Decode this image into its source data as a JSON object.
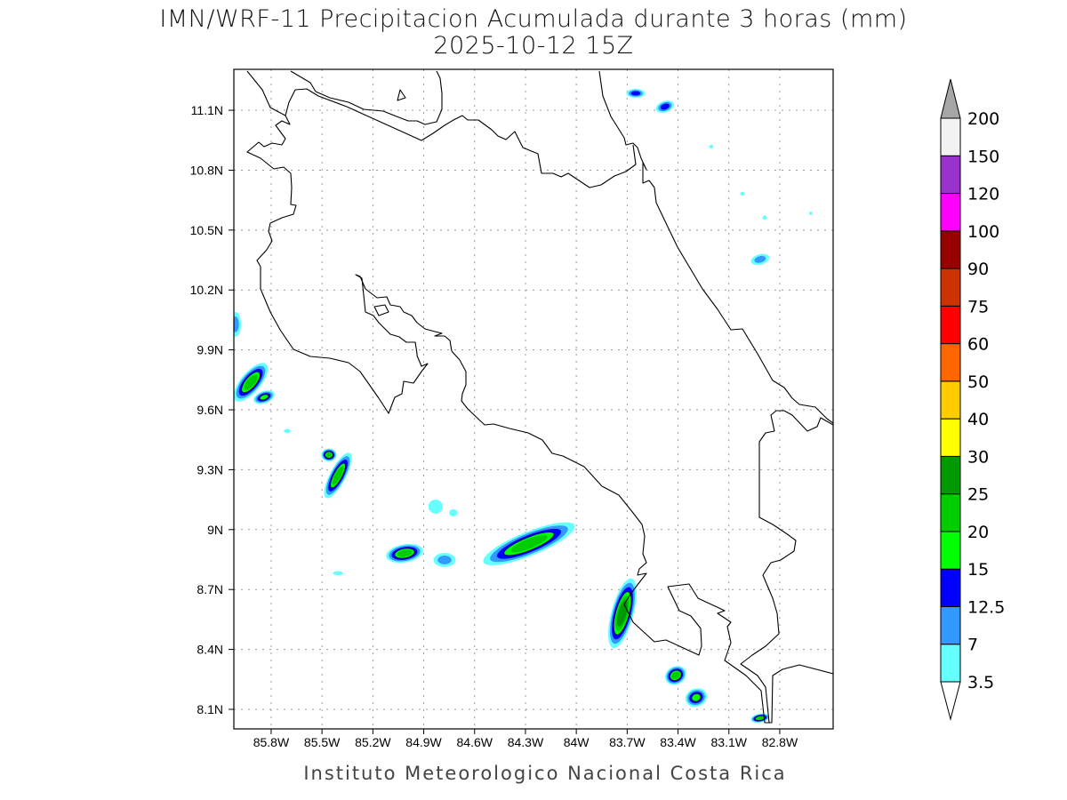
{
  "title": {
    "line1": "IMN/WRF-11 Precipitacion Acumulada durante 3 horas (mm)",
    "line2": "2025-10-12 15Z"
  },
  "footer": "Instituto Meteorologico Nacional Costa Rica",
  "map": {
    "lon_range": [
      -86.02,
      -82.485
    ],
    "lat_range": [
      8.002,
      11.305
    ],
    "lon_ticks": [
      {
        "value": -85.8,
        "label": "85.8W"
      },
      {
        "value": -85.5,
        "label": "85.5W"
      },
      {
        "value": -85.2,
        "label": "85.2W"
      },
      {
        "value": -84.9,
        "label": "84.9W"
      },
      {
        "value": -84.6,
        "label": "84.6W"
      },
      {
        "value": -84.3,
        "label": "84.3W"
      },
      {
        "value": -84.0,
        "label": "84W"
      },
      {
        "value": -83.7,
        "label": "83.7W"
      },
      {
        "value": -83.4,
        "label": "83.4W"
      },
      {
        "value": -83.1,
        "label": "83.1W"
      },
      {
        "value": -82.8,
        "label": "82.8W"
      }
    ],
    "lat_ticks": [
      {
        "value": 8.1,
        "label": "8.1N"
      },
      {
        "value": 8.4,
        "label": "8.4N"
      },
      {
        "value": 8.7,
        "label": "8.7N"
      },
      {
        "value": 9.0,
        "label": "9N"
      },
      {
        "value": 9.3,
        "label": "9.3N"
      },
      {
        "value": 9.6,
        "label": "9.6N"
      },
      {
        "value": 9.9,
        "label": "9.9N"
      },
      {
        "value": 10.2,
        "label": "10.2N"
      },
      {
        "value": 10.5,
        "label": "10.5N"
      },
      {
        "value": 10.8,
        "label": "10.8N"
      },
      {
        "value": 11.1,
        "label": "11.1N"
      }
    ],
    "precip_cells": [
      {
        "lon": -83.65,
        "lat": 11.185,
        "rx": 0.055,
        "ry": 0.022,
        "rot": 0,
        "max_level": 2
      },
      {
        "lon": -83.477,
        "lat": 11.118,
        "rx": 0.055,
        "ry": 0.028,
        "rot": 20,
        "max_level": 2
      },
      {
        "lon": -82.916,
        "lat": 10.353,
        "rx": 0.055,
        "ry": 0.026,
        "rot": 15,
        "max_level": 1
      },
      {
        "lon": -85.92,
        "lat": 9.738,
        "rx": 0.14,
        "ry": 0.05,
        "rot": 50,
        "max_level": 4
      },
      {
        "lon": -85.842,
        "lat": 9.663,
        "rx": 0.065,
        "ry": 0.03,
        "rot": 20,
        "max_level": 3
      },
      {
        "lon": -85.406,
        "lat": 9.271,
        "rx": 0.15,
        "ry": 0.04,
        "rot": 62,
        "max_level": 4
      },
      {
        "lon": -85.459,
        "lat": 9.374,
        "rx": 0.045,
        "ry": 0.032,
        "rot": 0,
        "max_level": 4
      },
      {
        "lon": -85.013,
        "lat": 8.881,
        "rx": 0.11,
        "ry": 0.045,
        "rot": 10,
        "max_level": 4
      },
      {
        "lon": -84.83,
        "lat": 9.115,
        "rx": 0.042,
        "ry": 0.035,
        "rot": 0,
        "max_level": 0
      },
      {
        "lon": -84.279,
        "lat": 8.929,
        "rx": 0.29,
        "ry": 0.06,
        "rot": 22,
        "max_level": 4
      },
      {
        "lon": -83.728,
        "lat": 8.581,
        "rx": 0.065,
        "ry": 0.18,
        "rot": -15,
        "max_level": 5
      },
      {
        "lon": -83.414,
        "lat": 8.27,
        "rx": 0.065,
        "ry": 0.045,
        "rot": 30,
        "max_level": 4
      },
      {
        "lon": -83.293,
        "lat": 8.159,
        "rx": 0.065,
        "ry": 0.045,
        "rot": 20,
        "max_level": 3
      },
      {
        "lon": -82.916,
        "lat": 8.056,
        "rx": 0.055,
        "ry": 0.022,
        "rot": 10,
        "max_level": 4
      },
      {
        "lon": -86.01,
        "lat": 10.028,
        "rx": 0.032,
        "ry": 0.062,
        "rot": 0,
        "max_level": 1
      },
      {
        "lon": -84.777,
        "lat": 8.848,
        "rx": 0.065,
        "ry": 0.035,
        "rot": 0,
        "max_level": 1
      },
      {
        "lon": -83.021,
        "lat": 10.682,
        "rx": 0.012,
        "ry": 0.01,
        "rot": 0,
        "max_level": 0
      },
      {
        "lon": -82.889,
        "lat": 10.562,
        "rx": 0.014,
        "ry": 0.01,
        "rot": 0,
        "max_level": 0
      },
      {
        "lon": -83.204,
        "lat": 10.918,
        "rx": 0.012,
        "ry": 0.01,
        "rot": 0,
        "max_level": 0
      },
      {
        "lon": -82.617,
        "lat": 10.584,
        "rx": 0.01,
        "ry": 0.008,
        "rot": 0,
        "max_level": 0
      },
      {
        "lon": -85.406,
        "lat": 8.782,
        "rx": 0.03,
        "ry": 0.01,
        "rot": 0,
        "max_level": 0
      },
      {
        "lon": -85.705,
        "lat": 9.494,
        "rx": 0.02,
        "ry": 0.01,
        "rot": 0,
        "max_level": 0
      },
      {
        "lon": -84.725,
        "lat": 9.084,
        "rx": 0.025,
        "ry": 0.018,
        "rot": 0,
        "max_level": 0
      }
    ]
  },
  "colorbar": {
    "under_color": "#ffffff",
    "over_color": "#a6a6a6",
    "levels": [
      {
        "label": "3.5",
        "color": "#66ffff"
      },
      {
        "label": "7",
        "color": "#3399ff"
      },
      {
        "label": "12.5",
        "color": "#0000ff"
      },
      {
        "label": "15",
        "color": "#00ff00"
      },
      {
        "label": "20",
        "color": "#00cc00"
      },
      {
        "label": "25",
        "color": "#009900"
      },
      {
        "label": "30",
        "color": "#ffff00"
      },
      {
        "label": "40",
        "color": "#ffcc00"
      },
      {
        "label": "50",
        "color": "#ff6600"
      },
      {
        "label": "60",
        "color": "#ff0000"
      },
      {
        "label": "75",
        "color": "#cc3300"
      },
      {
        "label": "90",
        "color": "#990000"
      },
      {
        "label": "100",
        "color": "#ff00ff"
      },
      {
        "label": "120",
        "color": "#9933cc"
      },
      {
        "label": "150",
        "color": "#f2f2f2"
      }
    ],
    "top_label": "200"
  }
}
